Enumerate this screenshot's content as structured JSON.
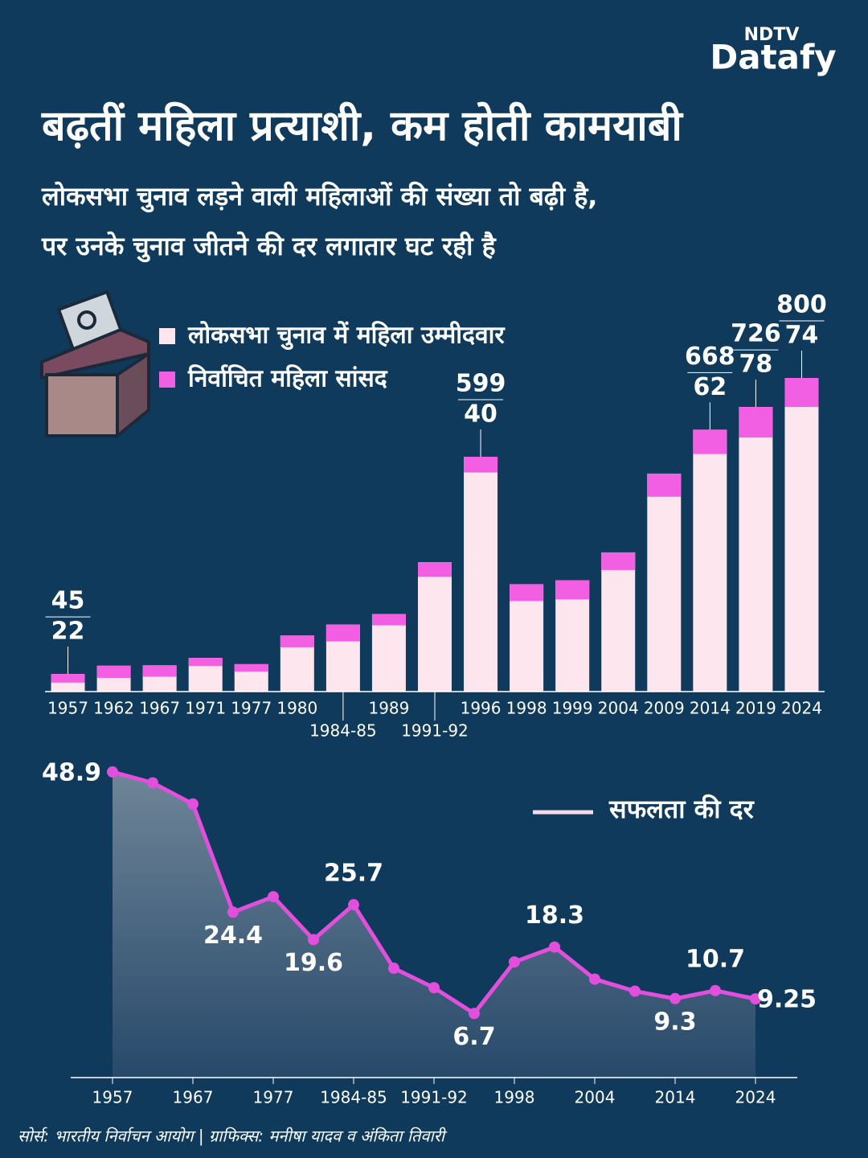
{
  "header": {
    "logo_top": "NDTV",
    "logo_bottom": "Datafy",
    "title": "बढ़तीं महिला प्रत्याशी, कम होती कामयाबी",
    "subtitle_line1": "लोकसभा चुनाव लड़ने वाली महिलाओं की संख्या तो बढ़ी है,",
    "subtitle_line2": "पर उनके चुनाव जीतने की दर लगातार घट रही है"
  },
  "chart_data": [
    {
      "type": "bar",
      "categories": [
        "1957",
        "1962",
        "1967",
        "1971",
        "1977",
        "1980",
        "1984-85",
        "1989",
        "1991-92",
        "1996",
        "1998",
        "1999",
        "2004",
        "2009",
        "2014",
        "2019",
        "2024"
      ],
      "series": [
        {
          "name": "लोकसभा चुनाव में महिला उम्मीदवार",
          "color": "#fde6ee",
          "values": [
            45,
            66,
            67,
            86,
            70,
            143,
            171,
            198,
            330,
            599,
            274,
            284,
            355,
            556,
            668,
            726,
            800
          ],
          "value_labels": [
            45,
            null,
            null,
            null,
            null,
            null,
            null,
            null,
            null,
            599,
            null,
            null,
            null,
            null,
            668,
            726,
            800
          ]
        },
        {
          "name": "निर्वाचित महिला सांसद",
          "color": "#f25fe3",
          "values": [
            22,
            31,
            29,
            21,
            19,
            30,
            43,
            29,
            37,
            40,
            43,
            49,
            45,
            59,
            62,
            78,
            74
          ],
          "value_labels": [
            22,
            null,
            null,
            null,
            null,
            null,
            null,
            null,
            null,
            40,
            null,
            null,
            null,
            null,
            62,
            78,
            74
          ]
        }
      ],
      "ylim": [
        0,
        800
      ]
    },
    {
      "type": "line",
      "categories": [
        "1957",
        null,
        "1967",
        null,
        "1977",
        null,
        "1984-85",
        null,
        "1991-92",
        null,
        "1998",
        null,
        "2004",
        null,
        "2014",
        null,
        "2024"
      ],
      "series": [
        {
          "name": "सफलता की दर",
          "color": "#e14fdc",
          "values": [
            48.9,
            47.0,
            43.3,
            24.4,
            27.1,
            19.6,
            25.7,
            14.6,
            11.2,
            6.7,
            15.7,
            18.3,
            12.7,
            10.6,
            9.3,
            10.7,
            9.25
          ],
          "value_labels": [
            48.9,
            null,
            null,
            24.4,
            null,
            19.6,
            25.7,
            null,
            null,
            6.7,
            null,
            18.3,
            null,
            null,
            9.3,
            10.7,
            9.25
          ]
        }
      ],
      "ylim": [
        -4.5,
        51.7
      ]
    }
  ],
  "footer": {
    "source": "सोर्स: भारतीय निर्वाचन आयोग | ग्राफिक्स: मनीषा यादव व अंकिता तिवारी"
  }
}
